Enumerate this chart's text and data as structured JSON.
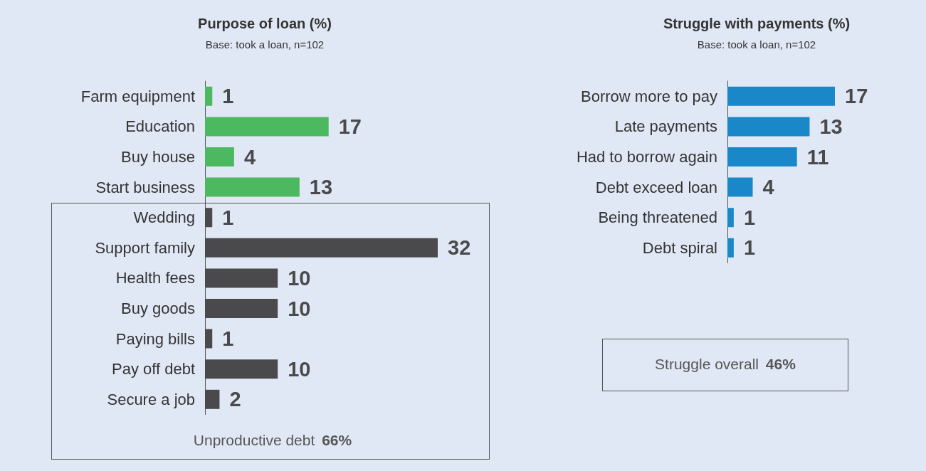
{
  "chart_data": [
    {
      "type": "bar",
      "orientation": "horizontal",
      "title": "Purpose of loan (%)",
      "subtitle": "Base: took a loan, n=102",
      "categories": [
        "Farm equipment",
        "Education",
        "Buy house",
        "Start business",
        "Wedding",
        "Support family",
        "Health fees",
        "Buy goods",
        "Paying bills",
        "Pay off debt",
        "Secure a job"
      ],
      "values": [
        1,
        17,
        4,
        13,
        1,
        32,
        10,
        10,
        1,
        10,
        2
      ],
      "colors": [
        "#4cb860",
        "#4cb860",
        "#4cb860",
        "#4cb860",
        "#4a4a4c",
        "#4a4a4c",
        "#4a4a4c",
        "#4a4a4c",
        "#4a4a4c",
        "#4a4a4c",
        "#4a4a4c"
      ],
      "data_labels": true,
      "annotations": [
        "Unproductive debt 66%"
      ]
    },
    {
      "type": "bar",
      "orientation": "horizontal",
      "title": "Struggle with payments (%)",
      "subtitle": "Base: took a loan, n=102",
      "categories": [
        "Borrow more to pay",
        "Late payments",
        "Had to borrow again",
        "Debt exceed loan",
        "Being threatened",
        "Debt spiral"
      ],
      "values": [
        17,
        13,
        11,
        4,
        1,
        1
      ],
      "colors": [
        "#1a87c9",
        "#1a87c9",
        "#1a87c9",
        "#1a87c9",
        "#1a87c9",
        "#1a87c9"
      ],
      "data_labels": true,
      "annotations": [
        "Struggle overall 46%"
      ]
    }
  ]
}
